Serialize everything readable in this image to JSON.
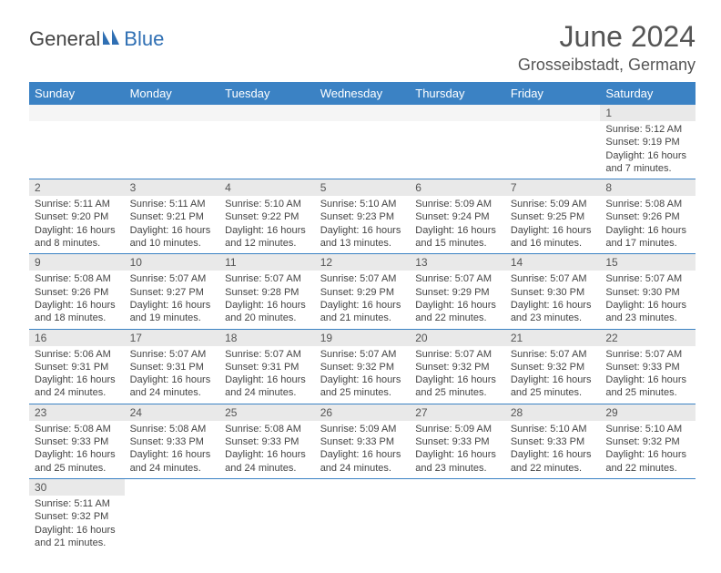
{
  "logo": {
    "part1": "General",
    "part2": "Blue"
  },
  "title": "June 2024",
  "location": "Grosseibstadt, Germany",
  "colors": {
    "header_bg": "#3b82c4",
    "header_text": "#ffffff",
    "daynum_bg": "#e9e9e9",
    "border": "#3b82c4",
    "logo_blue": "#2f6fb3"
  },
  "weekdays": [
    "Sunday",
    "Monday",
    "Tuesday",
    "Wednesday",
    "Thursday",
    "Friday",
    "Saturday"
  ],
  "weeks": [
    [
      null,
      null,
      null,
      null,
      null,
      null,
      {
        "d": "1",
        "l": [
          "Sunrise: 5:12 AM",
          "Sunset: 9:19 PM",
          "Daylight: 16 hours",
          "and 7 minutes."
        ]
      }
    ],
    [
      {
        "d": "2",
        "l": [
          "Sunrise: 5:11 AM",
          "Sunset: 9:20 PM",
          "Daylight: 16 hours",
          "and 8 minutes."
        ]
      },
      {
        "d": "3",
        "l": [
          "Sunrise: 5:11 AM",
          "Sunset: 9:21 PM",
          "Daylight: 16 hours",
          "and 10 minutes."
        ]
      },
      {
        "d": "4",
        "l": [
          "Sunrise: 5:10 AM",
          "Sunset: 9:22 PM",
          "Daylight: 16 hours",
          "and 12 minutes."
        ]
      },
      {
        "d": "5",
        "l": [
          "Sunrise: 5:10 AM",
          "Sunset: 9:23 PM",
          "Daylight: 16 hours",
          "and 13 minutes."
        ]
      },
      {
        "d": "6",
        "l": [
          "Sunrise: 5:09 AM",
          "Sunset: 9:24 PM",
          "Daylight: 16 hours",
          "and 15 minutes."
        ]
      },
      {
        "d": "7",
        "l": [
          "Sunrise: 5:09 AM",
          "Sunset: 9:25 PM",
          "Daylight: 16 hours",
          "and 16 minutes."
        ]
      },
      {
        "d": "8",
        "l": [
          "Sunrise: 5:08 AM",
          "Sunset: 9:26 PM",
          "Daylight: 16 hours",
          "and 17 minutes."
        ]
      }
    ],
    [
      {
        "d": "9",
        "l": [
          "Sunrise: 5:08 AM",
          "Sunset: 9:26 PM",
          "Daylight: 16 hours",
          "and 18 minutes."
        ]
      },
      {
        "d": "10",
        "l": [
          "Sunrise: 5:07 AM",
          "Sunset: 9:27 PM",
          "Daylight: 16 hours",
          "and 19 minutes."
        ]
      },
      {
        "d": "11",
        "l": [
          "Sunrise: 5:07 AM",
          "Sunset: 9:28 PM",
          "Daylight: 16 hours",
          "and 20 minutes."
        ]
      },
      {
        "d": "12",
        "l": [
          "Sunrise: 5:07 AM",
          "Sunset: 9:29 PM",
          "Daylight: 16 hours",
          "and 21 minutes."
        ]
      },
      {
        "d": "13",
        "l": [
          "Sunrise: 5:07 AM",
          "Sunset: 9:29 PM",
          "Daylight: 16 hours",
          "and 22 minutes."
        ]
      },
      {
        "d": "14",
        "l": [
          "Sunrise: 5:07 AM",
          "Sunset: 9:30 PM",
          "Daylight: 16 hours",
          "and 23 minutes."
        ]
      },
      {
        "d": "15",
        "l": [
          "Sunrise: 5:07 AM",
          "Sunset: 9:30 PM",
          "Daylight: 16 hours",
          "and 23 minutes."
        ]
      }
    ],
    [
      {
        "d": "16",
        "l": [
          "Sunrise: 5:06 AM",
          "Sunset: 9:31 PM",
          "Daylight: 16 hours",
          "and 24 minutes."
        ]
      },
      {
        "d": "17",
        "l": [
          "Sunrise: 5:07 AM",
          "Sunset: 9:31 PM",
          "Daylight: 16 hours",
          "and 24 minutes."
        ]
      },
      {
        "d": "18",
        "l": [
          "Sunrise: 5:07 AM",
          "Sunset: 9:31 PM",
          "Daylight: 16 hours",
          "and 24 minutes."
        ]
      },
      {
        "d": "19",
        "l": [
          "Sunrise: 5:07 AM",
          "Sunset: 9:32 PM",
          "Daylight: 16 hours",
          "and 25 minutes."
        ]
      },
      {
        "d": "20",
        "l": [
          "Sunrise: 5:07 AM",
          "Sunset: 9:32 PM",
          "Daylight: 16 hours",
          "and 25 minutes."
        ]
      },
      {
        "d": "21",
        "l": [
          "Sunrise: 5:07 AM",
          "Sunset: 9:32 PM",
          "Daylight: 16 hours",
          "and 25 minutes."
        ]
      },
      {
        "d": "22",
        "l": [
          "Sunrise: 5:07 AM",
          "Sunset: 9:33 PM",
          "Daylight: 16 hours",
          "and 25 minutes."
        ]
      }
    ],
    [
      {
        "d": "23",
        "l": [
          "Sunrise: 5:08 AM",
          "Sunset: 9:33 PM",
          "Daylight: 16 hours",
          "and 25 minutes."
        ]
      },
      {
        "d": "24",
        "l": [
          "Sunrise: 5:08 AM",
          "Sunset: 9:33 PM",
          "Daylight: 16 hours",
          "and 24 minutes."
        ]
      },
      {
        "d": "25",
        "l": [
          "Sunrise: 5:08 AM",
          "Sunset: 9:33 PM",
          "Daylight: 16 hours",
          "and 24 minutes."
        ]
      },
      {
        "d": "26",
        "l": [
          "Sunrise: 5:09 AM",
          "Sunset: 9:33 PM",
          "Daylight: 16 hours",
          "and 24 minutes."
        ]
      },
      {
        "d": "27",
        "l": [
          "Sunrise: 5:09 AM",
          "Sunset: 9:33 PM",
          "Daylight: 16 hours",
          "and 23 minutes."
        ]
      },
      {
        "d": "28",
        "l": [
          "Sunrise: 5:10 AM",
          "Sunset: 9:33 PM",
          "Daylight: 16 hours",
          "and 22 minutes."
        ]
      },
      {
        "d": "29",
        "l": [
          "Sunrise: 5:10 AM",
          "Sunset: 9:32 PM",
          "Daylight: 16 hours",
          "and 22 minutes."
        ]
      }
    ],
    [
      {
        "d": "30",
        "l": [
          "Sunrise: 5:11 AM",
          "Sunset: 9:32 PM",
          "Daylight: 16 hours",
          "and 21 minutes."
        ]
      },
      null,
      null,
      null,
      null,
      null,
      null
    ]
  ]
}
